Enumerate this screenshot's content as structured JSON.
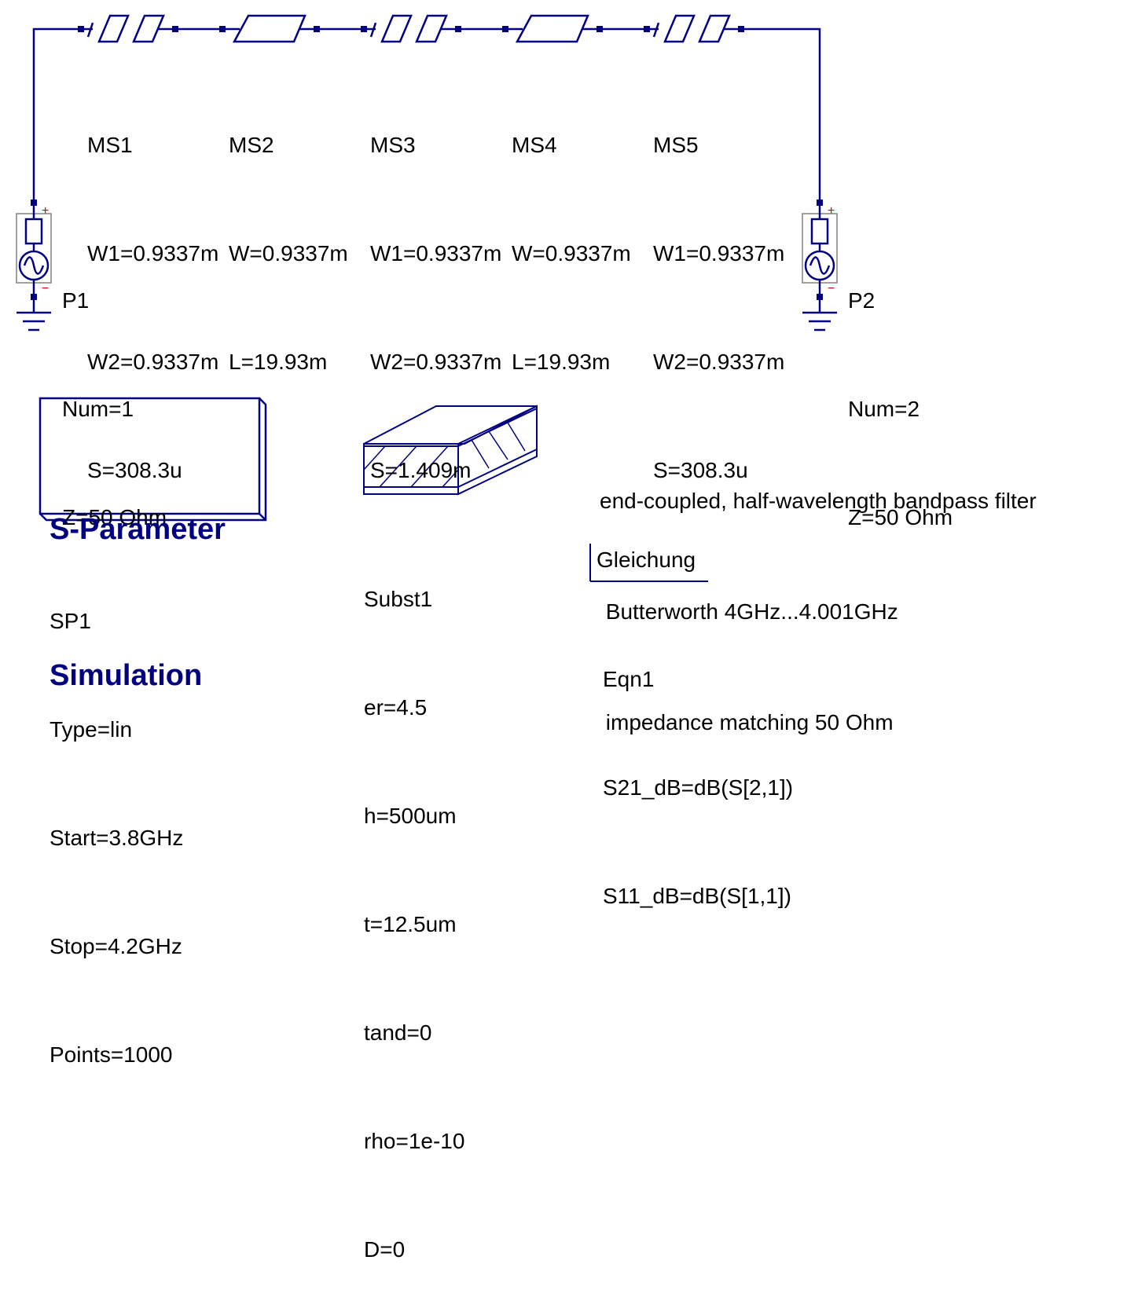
{
  "colors": {
    "wire": "#000080",
    "text": "#000000",
    "title": "#000080",
    "port_sign": "#cc0000"
  },
  "components": {
    "ms1": {
      "name": "MS1",
      "params": [
        "W1=0.9337m",
        "W2=0.9337m",
        "S=308.3u"
      ]
    },
    "ms2": {
      "name": "MS2",
      "params": [
        "W=0.9337m",
        "L=19.93m"
      ]
    },
    "ms3": {
      "name": "MS3",
      "params": [
        "W1=0.9337m",
        "W2=0.9337m",
        "S=1.409m"
      ]
    },
    "ms4": {
      "name": "MS4",
      "params": [
        "W=0.9337m",
        "L=19.93m"
      ]
    },
    "ms5": {
      "name": "MS5",
      "params": [
        "W1=0.9337m",
        "W2=0.9337m",
        "S=308.3u"
      ]
    }
  },
  "ports": {
    "p1": {
      "name": "P1",
      "params": [
        "Num=1",
        "Z=50 Ohm"
      ]
    },
    "p2": {
      "name": "P2",
      "params": [
        "Num=2",
        "Z=50 Ohm"
      ]
    }
  },
  "simulation": {
    "title_line1": "S-Parameter",
    "title_line2": "Simulation",
    "name": "SP1",
    "params": [
      "Type=lin",
      "Start=3.8GHz",
      "Stop=4.2GHz",
      "Points=1000"
    ]
  },
  "substrate": {
    "name": "Subst1",
    "params": [
      "er=4.5",
      "h=500um",
      "t=12.5um",
      "tand=0",
      "rho=1e-10",
      "D=0"
    ]
  },
  "description": {
    "lines": [
      "end-coupled, half-wavelength bandpass filter",
      " Butterworth 4GHz...4.001GHz",
      " impedance matching 50 Ohm"
    ]
  },
  "equation": {
    "header": "Gleichung",
    "name": "Eqn1",
    "params": [
      "S21_dB=dB(S[2,1])",
      "S11_dB=dB(S[1,1])"
    ]
  },
  "port_signs": {
    "plus": "+",
    "minus": "−"
  }
}
